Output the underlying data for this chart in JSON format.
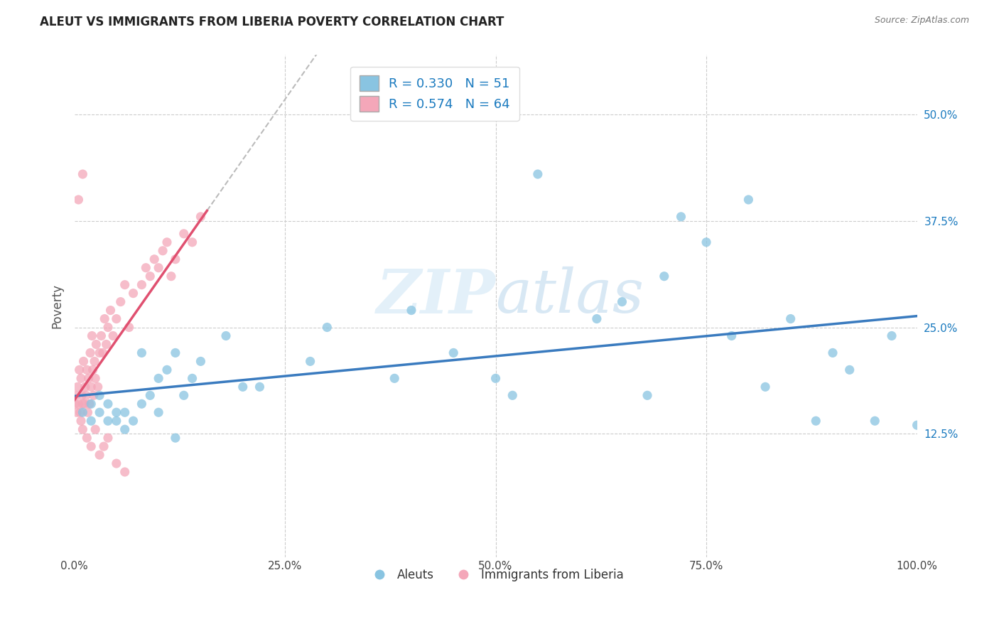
{
  "title": "ALEUT VS IMMIGRANTS FROM LIBERIA POVERTY CORRELATION CHART",
  "source": "Source: ZipAtlas.com",
  "ylabel": "Poverty",
  "xlim": [
    0.0,
    1.0
  ],
  "ylim": [
    -0.02,
    0.57
  ],
  "xticks": [
    0.0,
    0.25,
    0.5,
    0.75,
    1.0
  ],
  "xticklabels": [
    "0.0%",
    "25.0%",
    "50.0%",
    "75.0%",
    "100.0%"
  ],
  "ytick_positions": [
    0.125,
    0.25,
    0.375,
    0.5
  ],
  "yticklabels": [
    "12.5%",
    "25.0%",
    "37.5%",
    "50.0%"
  ],
  "aleuts_R": 0.33,
  "aleuts_N": 51,
  "liberia_R": 0.574,
  "liberia_N": 64,
  "aleuts_color": "#89c4e1",
  "liberia_color": "#f4a7b9",
  "trend_aleuts_color": "#3a7bbf",
  "trend_liberia_color": "#e05070",
  "background_color": "#ffffff",
  "grid_color": "#cccccc",
  "watermark_zip": "ZIP",
  "watermark_atlas": "atlas",
  "legend_R_color": "#1a7abf",
  "title_color": "#222222",
  "ylabel_color": "#555555",
  "source_color": "#777777",
  "bottom_legend_color": "#333333",
  "right_tick_color": "#1a7abf"
}
